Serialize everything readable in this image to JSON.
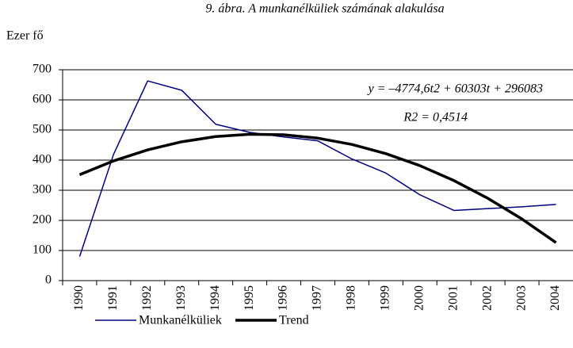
{
  "chart_data": {
    "type": "line",
    "title": "9. ábra. A munkanélküliek számának alakulása",
    "y_label": "Ezer fő",
    "annotations": [
      "y = –4774,6t2 + 60303t + 296083",
      "R2 = 0,4514"
    ],
    "categories": [
      "1990",
      "1991",
      "1992",
      "1993",
      "1994",
      "1995",
      "1996",
      "1997",
      "1998",
      "1999",
      "2000",
      "2001",
      "2002",
      "2003",
      "2004"
    ],
    "series": [
      {
        "name": "Munkanélküliek",
        "color": "#000080",
        "width": 1.5,
        "values": [
          80,
          420,
          663,
          632,
          519,
          492,
          477,
          464,
          404,
          357,
          285,
          233,
          239,
          245,
          253
        ]
      },
      {
        "name": "Trend",
        "color": "#000000",
        "width": 3.5,
        "values": [
          351.6,
          397.6,
          434.0,
          460.9,
          478.2,
          486.0,
          484.2,
          472.9,
          452.1,
          421.6,
          381.7,
          332.2,
          273.1,
          204.5,
          126.3
        ]
      }
    ],
    "ylim": [
      0,
      700
    ],
    "yticks": [
      0,
      100,
      200,
      300,
      400,
      500,
      600,
      700
    ],
    "grid": true,
    "legend": "bottom"
  }
}
